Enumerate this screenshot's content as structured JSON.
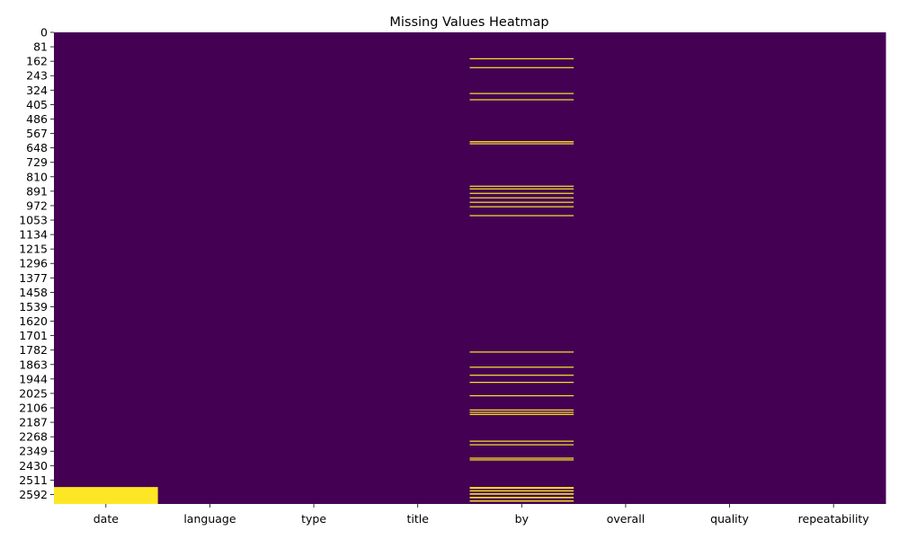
{
  "chart_data": {
    "type": "heatmap",
    "title": "Missing Values Heatmap",
    "xlabel": "",
    "ylabel": "",
    "columns": [
      "date",
      "language",
      "type",
      "title",
      "by",
      "overall",
      "quality",
      "repeatability"
    ],
    "y_ticks": [
      0,
      81,
      162,
      243,
      324,
      405,
      486,
      567,
      648,
      729,
      810,
      891,
      972,
      1053,
      1134,
      1215,
      1296,
      1377,
      1458,
      1539,
      1620,
      1701,
      1782,
      1863,
      1944,
      2025,
      2106,
      2187,
      2268,
      2349,
      2430,
      2511,
      2592
    ],
    "row_count": 2645,
    "colorbar": false,
    "colors": {
      "present": "#440154",
      "missing": "#fde725"
    },
    "missing_ranges": [
      {
        "column": "date",
        "rows": [
          [
            2550,
            2645
          ]
        ]
      },
      {
        "column": "by",
        "rows": [
          [
            145,
            149
          ],
          [
            195,
            199
          ],
          [
            340,
            344
          ],
          [
            375,
            379
          ],
          [
            610,
            617
          ],
          [
            622,
            627
          ],
          [
            860,
            864
          ],
          [
            875,
            879
          ],
          [
            900,
            904
          ],
          [
            925,
            931
          ],
          [
            950,
            956
          ],
          [
            975,
            979
          ],
          [
            1025,
            1029
          ],
          [
            1790,
            1794
          ],
          [
            1875,
            1879
          ],
          [
            1920,
            1924
          ],
          [
            1960,
            1964
          ],
          [
            2035,
            2039
          ],
          [
            2115,
            2119
          ],
          [
            2128,
            2132
          ],
          [
            2140,
            2144
          ],
          [
            2290,
            2296
          ],
          [
            2310,
            2314
          ],
          [
            2385,
            2389
          ],
          [
            2395,
            2399
          ],
          [
            2550,
            2560
          ],
          [
            2568,
            2575
          ],
          [
            2585,
            2593
          ],
          [
            2605,
            2613
          ],
          [
            2625,
            2632
          ]
        ]
      }
    ]
  }
}
